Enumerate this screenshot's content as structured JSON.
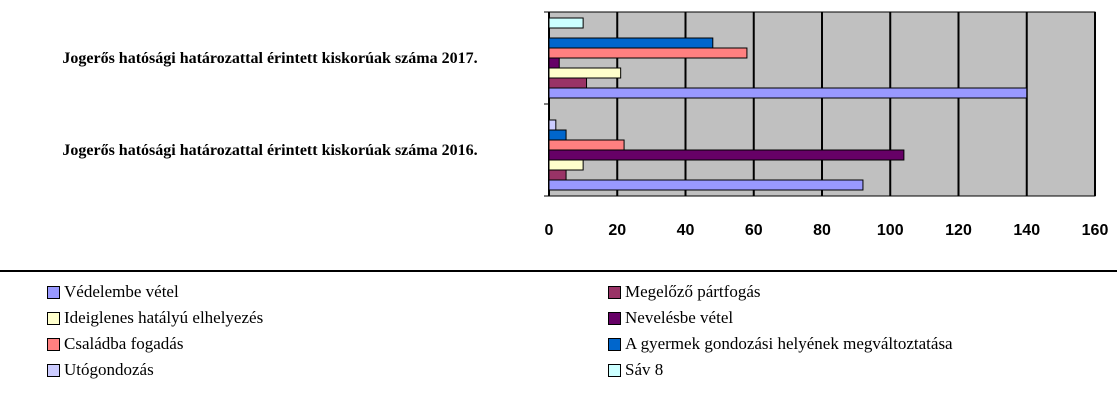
{
  "chart_data": {
    "type": "bar",
    "orientation": "horizontal",
    "categories": [
      "Jogerős hatósági határozattal érintett kiskorúak száma 2016.",
      "Jogerős hatósági határozattal érintett kiskorúak száma 2017."
    ],
    "series": [
      {
        "name": "Védelembe vétel",
        "color": "#9999ff",
        "values": [
          92,
          140
        ]
      },
      {
        "name": "Megelőző pártfogás",
        "color": "#993366",
        "values": [
          5,
          11
        ]
      },
      {
        "name": "Ideiglenes hatályú elhelyezés",
        "color": "#ffffcc",
        "values": [
          10,
          21
        ]
      },
      {
        "name": "Nevelésbe vétel",
        "color": "#660066",
        "values": [
          104,
          3
        ]
      },
      {
        "name": "Családba fogadás",
        "color": "#ff8080",
        "values": [
          22,
          58
        ]
      },
      {
        "name": "A gyermek gondozási helyének megváltoztatása",
        "color": "#0066cc",
        "values": [
          5,
          48
        ]
      },
      {
        "name": "Utógondozás",
        "color": "#ccccff",
        "values": [
          2,
          0
        ]
      },
      {
        "name": "Sáv 8",
        "color": "#ccffff",
        "values": [
          0,
          10
        ]
      }
    ],
    "xlim": [
      0,
      160
    ],
    "xticks": [
      0,
      20,
      40,
      60,
      80,
      100,
      120,
      140,
      160
    ],
    "grid": true,
    "plot_background": "#c0c0c0",
    "legend": "bottom"
  }
}
